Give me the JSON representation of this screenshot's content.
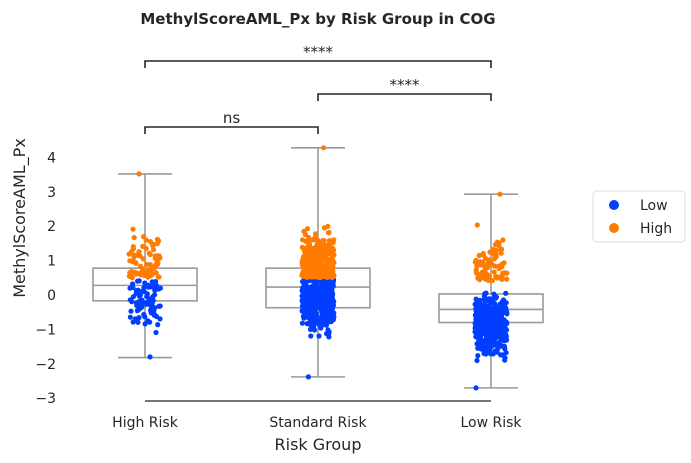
{
  "chart_data": {
    "type": "box-strip",
    "title": "MethylScoreAML_Px by Risk Group in COG",
    "xlabel": "Risk Group",
    "ylabel": "MethylScoreAML_Px",
    "categories": [
      "High Risk",
      "Standard Risk",
      "Low Risk"
    ],
    "ylim": [
      -3.1,
      4.5
    ],
    "yticks": [
      -3,
      -2,
      -1,
      0,
      1,
      2,
      3,
      4
    ],
    "ytick_labels": [
      "−3",
      "−2",
      "−1",
      "0",
      "1",
      "2",
      "3",
      "4"
    ],
    "grid": false,
    "legend_position": "right",
    "boxes": [
      {
        "category": "High Risk",
        "whisker_low": -1.82,
        "q1": -0.17,
        "median": 0.28,
        "q3": 0.78,
        "whisker_high": 3.52
      },
      {
        "category": "Standard Risk",
        "whisker_low": -2.38,
        "q1": -0.37,
        "median": 0.23,
        "q3": 0.78,
        "whisker_high": 4.28
      },
      {
        "category": "Low Risk",
        "whisker_low": -2.7,
        "q1": -0.8,
        "median": -0.42,
        "q3": 0.03,
        "whisker_high": 2.93
      }
    ],
    "series": [
      {
        "name": "Low",
        "color": "#023eff"
      },
      {
        "name": "High",
        "color": "#ff7c00"
      }
    ],
    "points": [
      {
        "category": "High Risk",
        "n_low": 85,
        "n_high": 75,
        "low_min": -1.8,
        "low_max": 0.45,
        "high_min": 0.5,
        "high_max": 3.52
      },
      {
        "category": "Standard Risk",
        "n_low": 380,
        "n_high": 330,
        "low_min": -2.38,
        "low_max": 0.45,
        "high_min": 0.5,
        "high_max": 4.28
      },
      {
        "category": "Low Risk",
        "n_low": 400,
        "n_high": 90,
        "low_min": -2.7,
        "low_max": 0.38,
        "high_min": 0.42,
        "high_max": 2.93
      }
    ],
    "annotations": [
      {
        "from": "High Risk",
        "to": "Standard Risk",
        "label": "ns",
        "level": 1
      },
      {
        "from": "Standard Risk",
        "to": "Low Risk",
        "label": "****",
        "level": 2
      },
      {
        "from": "High Risk",
        "to": "Low Risk",
        "label": "****",
        "level": 3
      }
    ]
  }
}
